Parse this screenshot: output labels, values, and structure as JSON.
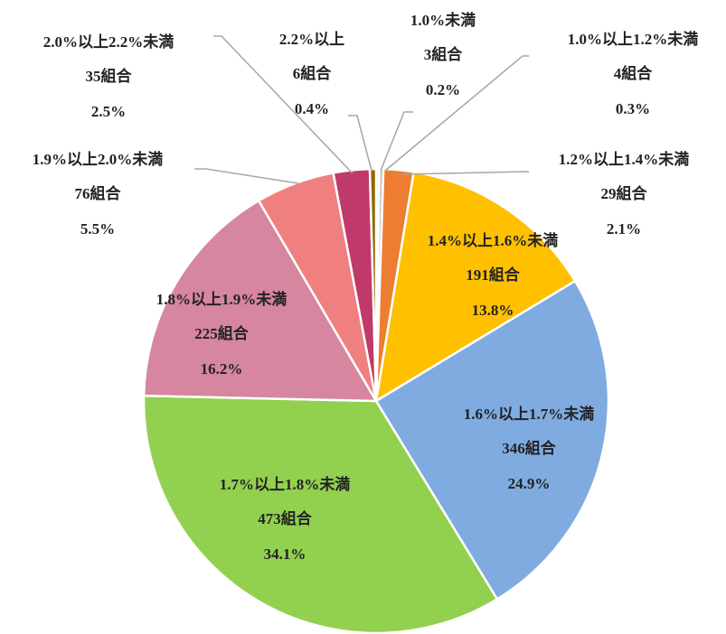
{
  "chart_data": {
    "type": "pie",
    "categories": [
      "1.0%未満",
      "1.0%以上1.2%未満",
      "1.2%以上1.4%未満",
      "1.4%以上1.6%未満",
      "1.6%以上1.7%未満",
      "1.7%以上1.8%未満",
      "1.8%以上1.9%未満",
      "1.9%以上2.0%未満",
      "2.0%以上2.2%未満",
      "2.2%以上"
    ],
    "values": [
      3,
      4,
      29,
      191,
      346,
      473,
      225,
      76,
      35,
      6
    ],
    "value_labels": [
      "3組合",
      "4組合",
      "29組合",
      "191組合",
      "346組合",
      "473組合",
      "225組合",
      "76組合",
      "35組合",
      "6組合"
    ],
    "percent_labels": [
      "0.2%",
      "0.3%",
      "2.1%",
      "13.8%",
      "24.9%",
      "34.1%",
      "16.2%",
      "5.5%",
      "2.5%",
      "0.4%"
    ],
    "colors": [
      "#dde8f5",
      "#bfbfbf",
      "#ed7d31",
      "#ffc000",
      "#7fabe0",
      "#92d050",
      "#d6869e",
      "#f08080",
      "#c0396b",
      "#8b6b00"
    ]
  }
}
